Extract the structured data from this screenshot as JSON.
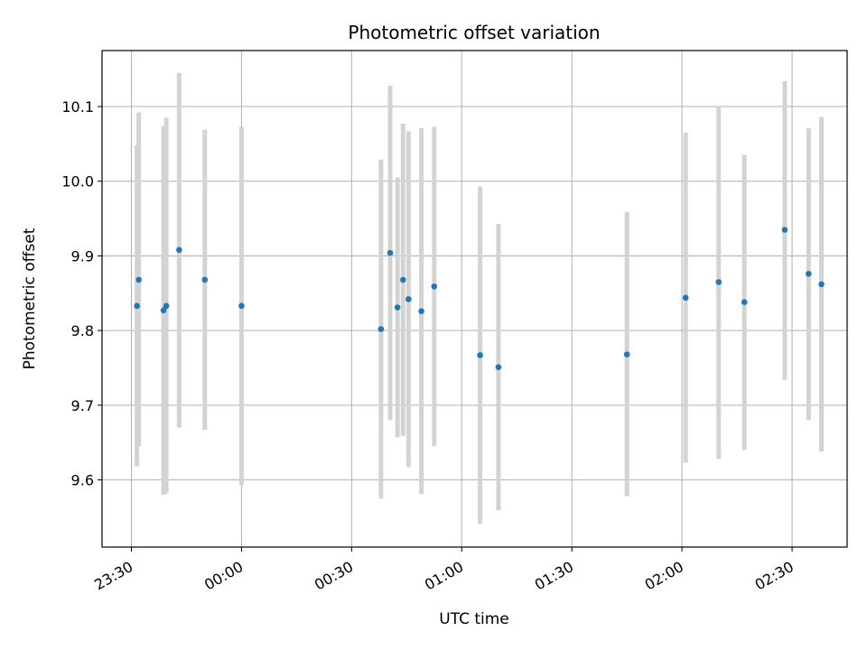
{
  "chart_data": {
    "type": "scatter",
    "title": "Photometric offset variation",
    "xlabel": "UTC time",
    "ylabel": "Photometric offset",
    "x_axis_type": "time",
    "x_tick_labels": [
      "23:30",
      "00:00",
      "00:30",
      "01:00",
      "01:30",
      "02:00",
      "02:30"
    ],
    "y_tick_labels": [
      "9.6",
      "9.7",
      "9.8",
      "9.9",
      "10.0",
      "10.1"
    ],
    "ylim": [
      9.51,
      10.175
    ],
    "xlim": [
      "23:22",
      "02:45"
    ],
    "grid": true,
    "point_color": "#1f77b4",
    "errorbar_color": "#d3d3d3",
    "points": [
      {
        "time": "23:31:30",
        "y": 9.833,
        "yerr_low": 9.618,
        "yerr_high": 10.048
      },
      {
        "time": "23:32:00",
        "y": 9.868,
        "yerr_low": 9.645,
        "yerr_high": 10.092
      },
      {
        "time": "23:38:45",
        "y": 9.827,
        "yerr_low": 9.58,
        "yerr_high": 10.074
      },
      {
        "time": "23:39:30",
        "y": 9.833,
        "yerr_low": 9.582,
        "yerr_high": 10.085
      },
      {
        "time": "23:43:00",
        "y": 9.908,
        "yerr_low": 9.67,
        "yerr_high": 10.145
      },
      {
        "time": "23:50:00",
        "y": 9.868,
        "yerr_low": 9.667,
        "yerr_high": 10.069
      },
      {
        "time": "00:00:00",
        "y": 9.833,
        "yerr_low": 9.593,
        "yerr_high": 10.073
      },
      {
        "time": "00:38:00",
        "y": 9.802,
        "yerr_low": 9.575,
        "yerr_high": 10.029
      },
      {
        "time": "00:40:30",
        "y": 9.904,
        "yerr_low": 9.68,
        "yerr_high": 10.128
      },
      {
        "time": "00:42:30",
        "y": 9.831,
        "yerr_low": 9.657,
        "yerr_high": 10.005
      },
      {
        "time": "00:44:00",
        "y": 9.868,
        "yerr_low": 9.659,
        "yerr_high": 10.077
      },
      {
        "time": "00:45:30",
        "y": 9.842,
        "yerr_low": 9.617,
        "yerr_high": 10.067
      },
      {
        "time": "00:49:00",
        "y": 9.826,
        "yerr_low": 9.581,
        "yerr_high": 10.071
      },
      {
        "time": "00:52:30",
        "y": 9.859,
        "yerr_low": 9.645,
        "yerr_high": 10.073
      },
      {
        "time": "01:05:00",
        "y": 9.767,
        "yerr_low": 9.541,
        "yerr_high": 9.993
      },
      {
        "time": "01:10:00",
        "y": 9.751,
        "yerr_low": 9.559,
        "yerr_high": 9.943
      },
      {
        "time": "01:45:00",
        "y": 9.768,
        "yerr_low": 9.578,
        "yerr_high": 9.959
      },
      {
        "time": "02:01:00",
        "y": 9.844,
        "yerr_low": 9.623,
        "yerr_high": 10.065
      },
      {
        "time": "02:10:00",
        "y": 9.865,
        "yerr_low": 9.628,
        "yerr_high": 10.101
      },
      {
        "time": "02:17:00",
        "y": 9.838,
        "yerr_low": 9.64,
        "yerr_high": 10.035
      },
      {
        "time": "02:28:00",
        "y": 9.935,
        "yerr_low": 9.734,
        "yerr_high": 10.134
      },
      {
        "time": "02:34:30",
        "y": 9.876,
        "yerr_low": 9.68,
        "yerr_high": 10.071
      },
      {
        "time": "02:38:00",
        "y": 9.862,
        "yerr_low": 9.638,
        "yerr_high": 10.086
      }
    ]
  }
}
